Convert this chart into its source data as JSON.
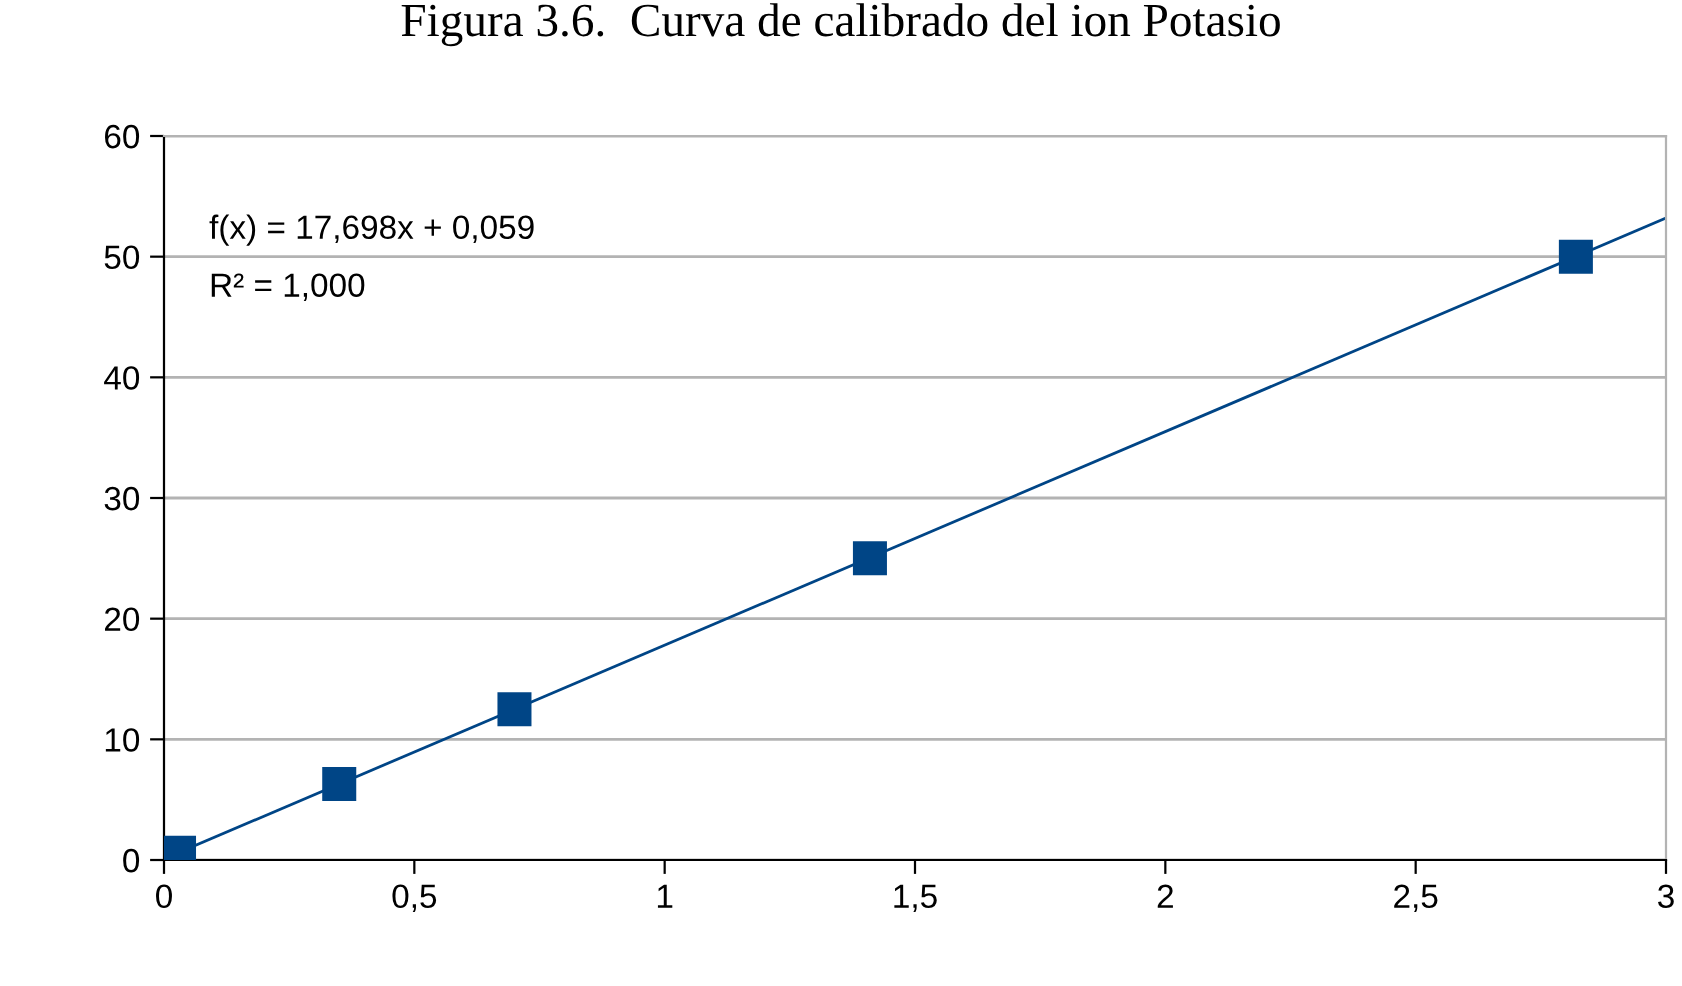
{
  "chart_data": {
    "type": "scatter",
    "title": "Figura 3.6.  Curva de calibrado del ion Potasio",
    "x": [
      0.03,
      0.35,
      0.7,
      1.41,
      2.82
    ],
    "series": [
      {
        "color": "#004586",
        "marker": "square",
        "values": [
          0.6,
          6.3,
          12.5,
          25,
          50
        ]
      },
      {
        "type": "line",
        "color": "#004586",
        "x": [
          0,
          3
        ],
        "values": [
          0.1,
          53.2
        ],
        "marker": "none",
        "line_style": "solid"
      }
    ],
    "annotations": [
      "f(x) = 17,698x + 0,059",
      "R² = 1,000"
    ],
    "xlim": [
      0,
      3
    ],
    "xticks": [
      0,
      {
        "value": 0.5,
        "label": "0,5"
      },
      1,
      {
        "value": 1.5,
        "label": "1,5"
      },
      2,
      {
        "value": 2.5,
        "label": "2,5"
      },
      3
    ],
    "ylim": [
      0,
      60
    ],
    "yticks": [
      0,
      10,
      20,
      30,
      40,
      50,
      60
    ],
    "grid": "y",
    "legend": false
  }
}
